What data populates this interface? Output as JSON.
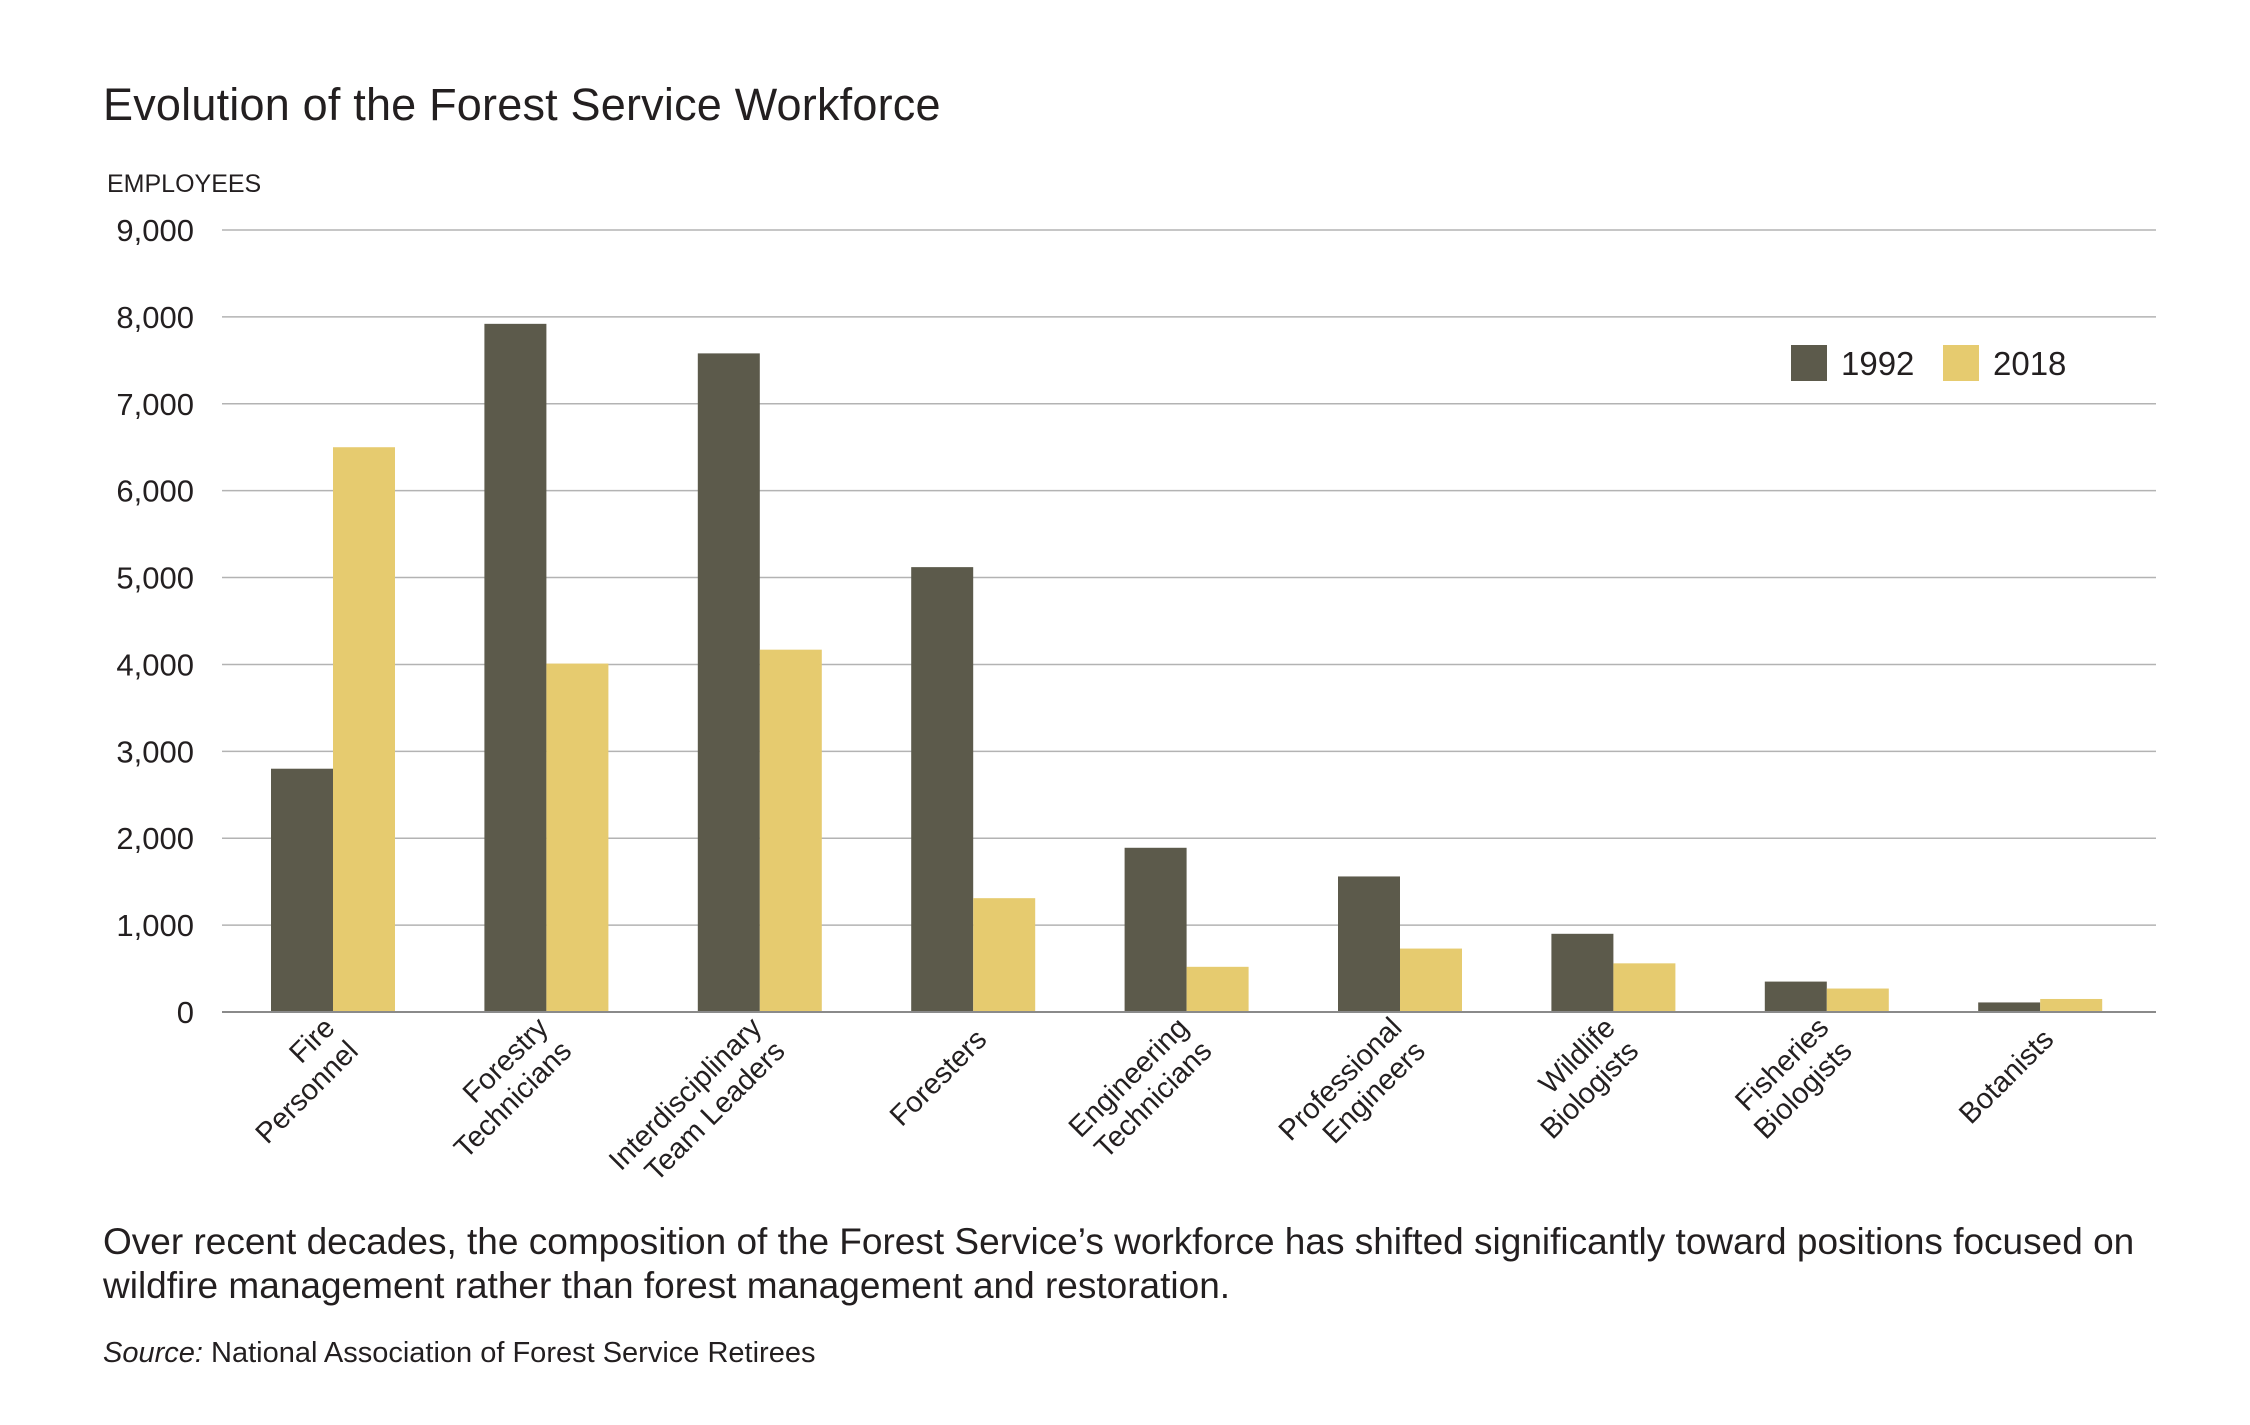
{
  "chart_data": {
    "type": "bar",
    "title": "Evolution of the Forest Service Workforce",
    "ylabel": "EMPLOYEES",
    "xlabel": "",
    "ylim": [
      0,
      9000
    ],
    "yticks": [
      0,
      1000,
      2000,
      3000,
      4000,
      5000,
      6000,
      7000,
      8000,
      9000
    ],
    "ytick_labels": [
      "0",
      "1,000",
      "2,000",
      "3,000",
      "4,000",
      "5,000",
      "6,000",
      "7,000",
      "8,000",
      "9,000"
    ],
    "grid": true,
    "legend_position": "top-right",
    "categories": [
      "Fire Personnel",
      "Forestry Technicians",
      "Interdisciplinary Team Leaders",
      "Foresters",
      "Engineering Technicians",
      "Professional Engineers",
      "Wildlife Biologists",
      "Fisheries Biologists",
      "Botanists"
    ],
    "category_label_lines": [
      [
        "Fire",
        "Personnel"
      ],
      [
        "Forestry",
        "Technicians"
      ],
      [
        "Interdisciplinary",
        "Team Leaders"
      ],
      [
        "Foresters"
      ],
      [
        "Engineering",
        "Technicians"
      ],
      [
        "Professional",
        "Engineers"
      ],
      [
        "Wildlife",
        "Biologists"
      ],
      [
        "Fisheries",
        "Biologists"
      ],
      [
        "Botanists"
      ]
    ],
    "series": [
      {
        "name": "1992",
        "color": "#5c5a4b",
        "values": [
          2800,
          7920,
          7580,
          5120,
          1890,
          1560,
          900,
          350,
          110
        ]
      },
      {
        "name": "2018",
        "color": "#e6cb6f",
        "values": [
          6500,
          4010,
          4170,
          1310,
          520,
          730,
          560,
          270,
          150
        ]
      }
    ]
  },
  "caption": "Over recent decades, the composition of the Forest Service’s workforce has shifted significantly toward positions focused on wildfire management rather than forest management and restoration.",
  "source": {
    "label": "Source:",
    "text": "National Association of Forest Service Retirees"
  }
}
